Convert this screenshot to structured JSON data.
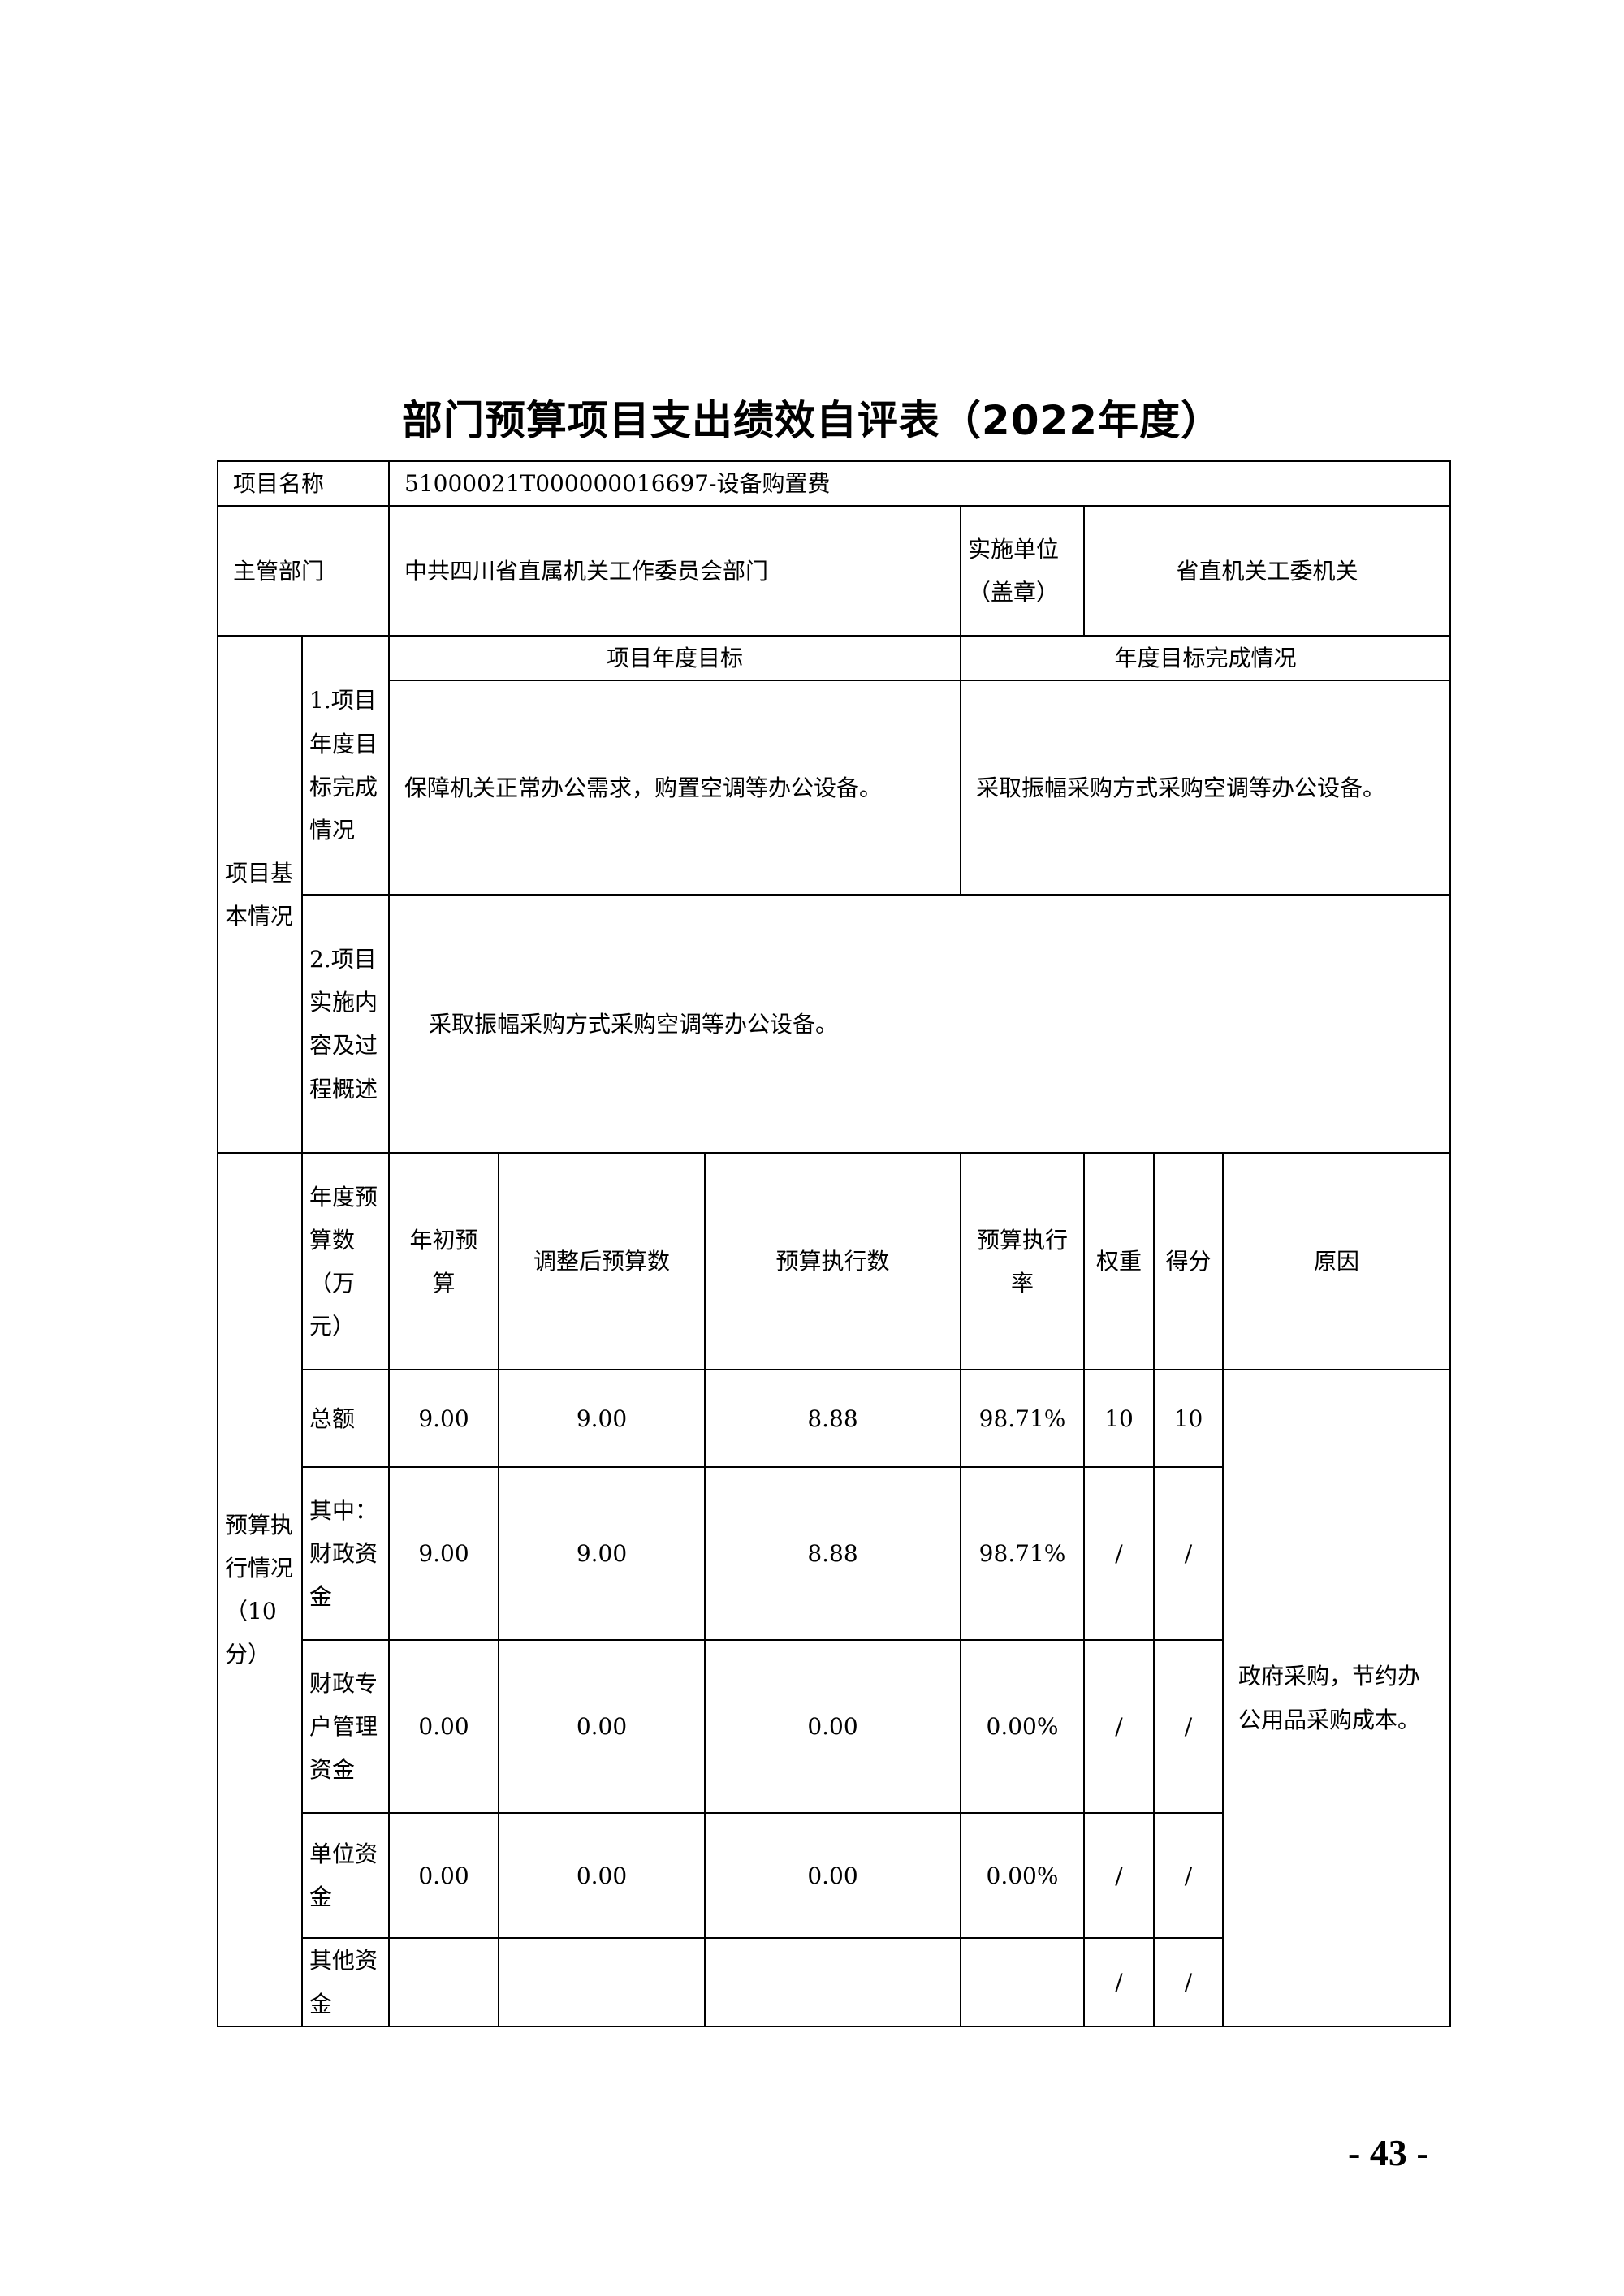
{
  "title": "部门预算项目支出绩效自评表（2022年度）",
  "page_number": "- 43 -",
  "project": {
    "name_label": "项目名称",
    "name_value": "51000021T000000016697-设备购置费",
    "dept_label": "主管部门",
    "dept_value": "中共四川省直属机关工作委员会部门",
    "unit_label": "实施单位（盖章）",
    "unit_value": "省直机关工委机关"
  },
  "basic": {
    "label": "项目基本情况",
    "sub1_label": "1.项目年度目标完成情况",
    "goal_header": "项目年度目标",
    "completion_header": "年度目标完成情况",
    "goal_text": "保障机关正常办公需求，购置空调等办公设备。",
    "completion_text": "采取振幅采购方式采购空调等办公设备。",
    "sub2_label": "2.项目实施内容及过程概述",
    "process_text": "采取振幅采购方式采购空调等办公设备。"
  },
  "budget": {
    "label": "预算执行情况（10分）",
    "headers": [
      "年度预算数（万元）",
      "年初预算",
      "调整后预算数",
      "预算执行数",
      "预算执行率",
      "权重",
      "得分",
      "原因"
    ],
    "rows": [
      {
        "label": "总额",
        "initial": "9.00",
        "adjusted": "9.00",
        "executed": "8.88",
        "rate": "98.71%",
        "weight": "10",
        "score": "10"
      },
      {
        "label": "其中：财政资金",
        "initial": "9.00",
        "adjusted": "9.00",
        "executed": "8.88",
        "rate": "98.71%",
        "weight": "/",
        "score": "/"
      },
      {
        "label": "财政专户管理资金",
        "initial": "0.00",
        "adjusted": "0.00",
        "executed": "0.00",
        "rate": "0.00%",
        "weight": "/",
        "score": "/"
      },
      {
        "label": "单位资金",
        "initial": "0.00",
        "adjusted": "0.00",
        "executed": "0.00",
        "rate": "0.00%",
        "weight": "/",
        "score": "/"
      },
      {
        "label": "其他资金",
        "initial": "",
        "adjusted": "",
        "executed": "",
        "rate": "",
        "weight": "/",
        "score": "/"
      }
    ],
    "reason": "政府采购，节约办公用品采购成本。"
  }
}
